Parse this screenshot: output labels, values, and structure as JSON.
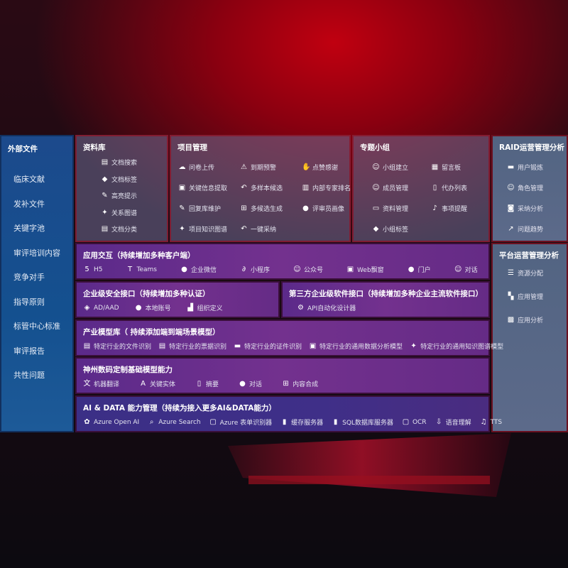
{
  "external": {
    "title": "外部文件",
    "items": [
      "临床文献",
      "发补文件",
      "关键字池",
      "审评培训内容",
      "竞争对手",
      "指导原则",
      "标管中心标准",
      "审评报告",
      "共性问题"
    ]
  },
  "library": {
    "title": "资料库",
    "items": [
      {
        "label": "文档搜索",
        "icon": "doc-search-icon"
      },
      {
        "label": "文档标签",
        "icon": "tag-icon"
      },
      {
        "label": "高亮提示",
        "icon": "pen-icon"
      },
      {
        "label": "关系图谱",
        "icon": "graph-icon"
      },
      {
        "label": "文档分类",
        "icon": "doc-list-icon"
      }
    ]
  },
  "project": {
    "title": "项目管理",
    "items": [
      {
        "label": "问卷上传",
        "icon": "cloud-upload-icon"
      },
      {
        "label": "到期预警",
        "icon": "alarm-icon"
      },
      {
        "label": "点赞感谢",
        "icon": "thumbs-up-icon"
      },
      {
        "label": "关键信息提取",
        "icon": "window-icon"
      },
      {
        "label": "多样本候选",
        "icon": "reply-icon"
      },
      {
        "label": "内部专家排名",
        "icon": "ranking-icon"
      },
      {
        "label": "回复库维护",
        "icon": "edit-icon"
      },
      {
        "label": "多候选生成",
        "icon": "puzzle-icon"
      },
      {
        "label": "评审员画像",
        "icon": "user-icon"
      },
      {
        "label": "项目知识图谱",
        "icon": "graph-icon"
      },
      {
        "label": "一键采纳",
        "icon": "reply-icon"
      }
    ]
  },
  "group": {
    "title": "专题小组",
    "items": [
      {
        "label": "小组建立",
        "icon": "users-icon"
      },
      {
        "label": "留言板",
        "icon": "bbs-icon"
      },
      {
        "label": "成员管理",
        "icon": "user-add-icon"
      },
      {
        "label": "代办列表",
        "icon": "clipboard-icon"
      },
      {
        "label": "资料管理",
        "icon": "folder-icon"
      },
      {
        "label": "事项提醒",
        "icon": "bell-icon"
      },
      {
        "label": "小组标签",
        "icon": "tag-icon"
      }
    ]
  },
  "raid": {
    "title": "RAID运营管理分析",
    "items": [
      {
        "label": "用户锻炼",
        "icon": "id-card-icon"
      },
      {
        "label": "角色管理",
        "icon": "users-icon"
      },
      {
        "label": "采纳分析",
        "icon": "qa-icon"
      },
      {
        "label": "问题趋势",
        "icon": "trend-icon"
      }
    ]
  },
  "platform": {
    "title": "平台运营管理分析",
    "items": [
      {
        "label": "资源分配",
        "icon": "checklist-icon"
      },
      {
        "label": "应用管理",
        "icon": "apps-icon"
      },
      {
        "label": "应用分析",
        "icon": "analysis-icon"
      }
    ]
  },
  "app": {
    "title": "应用交互（持续增加多种客户端）",
    "items": [
      {
        "label": "H5",
        "icon": "html5-icon"
      },
      {
        "label": "Teams",
        "icon": "teams-icon"
      },
      {
        "label": "企业微信",
        "icon": "wecom-icon"
      },
      {
        "label": "小程序",
        "icon": "miniprogram-icon"
      },
      {
        "label": "公众号",
        "icon": "users-icon"
      },
      {
        "label": "Web飘窗",
        "icon": "window-icon"
      },
      {
        "label": "门户",
        "icon": "portal-icon"
      },
      {
        "label": "对话",
        "icon": "chat-users-icon"
      }
    ]
  },
  "security": {
    "title": "企业级安全接口（持续增加多种认证）",
    "items": [
      {
        "label": "AD/AAD",
        "icon": "ad-icon"
      },
      {
        "label": "本地账号",
        "icon": "user-icon"
      },
      {
        "label": "组织定义",
        "icon": "org-icon"
      }
    ]
  },
  "thirdparty": {
    "title": "第三方企业级软件接口（持续增加多种企业主流软件接口）",
    "items": [
      {
        "label": "API自动化设计器",
        "icon": "gear-icon"
      }
    ]
  },
  "industry": {
    "title": "产业模型库（ 持续添加端到端场景模型）",
    "items": [
      {
        "label": "特定行业的文件识别",
        "icon": "file-icon"
      },
      {
        "label": "特定行业的票据识别",
        "icon": "receipt-icon"
      },
      {
        "label": "特定行业的证件识别",
        "icon": "id-card-icon"
      },
      {
        "label": "特定行业的通用数据分析模型",
        "icon": "chart-icon"
      },
      {
        "label": "特定行业的通用知识图谱模型",
        "icon": "graph-icon"
      }
    ]
  },
  "base": {
    "title": "神州数码定制基础模型能力",
    "items": [
      {
        "label": "机器翻译",
        "icon": "translate-icon"
      },
      {
        "label": "关键实体",
        "icon": "entity-icon"
      },
      {
        "label": "摘要",
        "icon": "doc-icon"
      },
      {
        "label": "对话",
        "icon": "chat-icon"
      },
      {
        "label": "内容合成",
        "icon": "puzzle-icon"
      }
    ]
  },
  "aidata": {
    "title": "AI & DATA 能力管理（持续为接入更多AI&DATA能力）",
    "items": [
      {
        "label": "Azure Open AI",
        "icon": "openai-icon"
      },
      {
        "label": "Azure Search",
        "icon": "search-icon"
      },
      {
        "label": "Azure 表单识别器",
        "icon": "form-icon"
      },
      {
        "label": "缓存服务器",
        "icon": "server-icon"
      },
      {
        "label": "SQL数据库服务器",
        "icon": "database-icon"
      },
      {
        "label": "OCR",
        "icon": "ocr-icon"
      },
      {
        "label": "语音理解",
        "icon": "voice-icon"
      },
      {
        "label": "TTS",
        "icon": "tts-icon"
      }
    ]
  }
}
